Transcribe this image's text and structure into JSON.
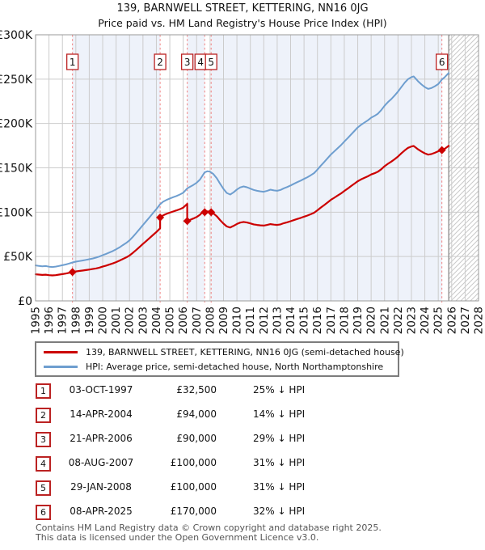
{
  "title": "139, BARNWELL STREET, KETTERING, NN16 0JG",
  "subtitle": "Price paid vs. HM Land Registry's House Price Index (HPI)",
  "chart_data": {
    "type": "line",
    "x_range": [
      1995,
      2028
    ],
    "y_range": [
      0,
      300000
    ],
    "x_ticks": [
      1995,
      1996,
      1997,
      1998,
      1999,
      2000,
      2001,
      2002,
      2003,
      2004,
      2005,
      2006,
      2007,
      2008,
      2009,
      2010,
      2011,
      2012,
      2013,
      2014,
      2015,
      2016,
      2017,
      2018,
      2019,
      2020,
      2021,
      2022,
      2023,
      2024,
      2025,
      2026,
      2027,
      2028
    ],
    "y_ticks": [
      {
        "value": 300000,
        "label": "£300K"
      },
      {
        "value": 250000,
        "label": "£250K"
      },
      {
        "value": 200000,
        "label": "£200K"
      },
      {
        "value": 150000,
        "label": "£150K"
      },
      {
        "value": 100000,
        "label": "£100K"
      },
      {
        "value": 50000,
        "label": "£50K"
      },
      {
        "value": 0,
        "label": "£0"
      }
    ],
    "grid": true,
    "legend_position": "below",
    "colors": {
      "price_line": "#cc0000",
      "hpi_line": "#6e9ecf",
      "event_line": "#f08080",
      "grid": "#cccccc",
      "border": "#999999",
      "owned_fill": "#eef2fa",
      "hatch": "#c9c9c9",
      "today_line": "#808080",
      "badge_border": "#bb2222"
    },
    "shaded_spans": [
      [
        1997.75,
        2004.28
      ],
      [
        2006.3,
        2007.6
      ],
      [
        2008.08,
        2025.27
      ]
    ],
    "hpi_end_year": 2025.78,
    "sales": [
      {
        "n": 1,
        "year": 1997.75,
        "price": 32500
      },
      {
        "n": 2,
        "year": 2004.28,
        "price": 94000
      },
      {
        "n": 3,
        "year": 2006.3,
        "price": 90000
      },
      {
        "n": 4,
        "year": 2007.6,
        "price": 100000
      },
      {
        "n": 5,
        "year": 2008.08,
        "price": 100000
      },
      {
        "n": 6,
        "year": 2025.27,
        "price": 170000
      }
    ],
    "series": [
      {
        "name": "139, BARNWELL STREET, KETTERING, NN16 0JG (semi-detached house)",
        "color": "#cc0000",
        "points": [
          [
            1995,
            30000
          ],
          [
            1995.25,
            29600
          ],
          [
            1995.5,
            29300
          ],
          [
            1995.75,
            29500
          ],
          [
            1996,
            29000
          ],
          [
            1996.25,
            28700
          ],
          [
            1996.5,
            29000
          ],
          [
            1996.75,
            29600
          ],
          [
            1997,
            30200
          ],
          [
            1997.25,
            30800
          ],
          [
            1997.5,
            31600
          ],
          [
            1997.75,
            32500
          ],
          [
            1998,
            33200
          ],
          [
            1998.25,
            33700
          ],
          [
            1998.5,
            34200
          ],
          [
            1998.75,
            34700
          ],
          [
            1999,
            35300
          ],
          [
            1999.25,
            35900
          ],
          [
            1999.5,
            36600
          ],
          [
            1999.75,
            37500
          ],
          [
            2000,
            38700
          ],
          [
            2000.25,
            39800
          ],
          [
            2000.5,
            40900
          ],
          [
            2000.75,
            42200
          ],
          [
            2001,
            43700
          ],
          [
            2001.25,
            45300
          ],
          [
            2001.5,
            47100
          ],
          [
            2001.75,
            49000
          ],
          [
            2002,
            51200
          ],
          [
            2002.25,
            54200
          ],
          [
            2002.5,
            57400
          ],
          [
            2002.75,
            60800
          ],
          [
            2003,
            64200
          ],
          [
            2003.25,
            67600
          ],
          [
            2003.5,
            70900
          ],
          [
            2003.75,
            74300
          ],
          [
            2004,
            77700
          ],
          [
            2004.28,
            81800
          ],
          [
            2004.28,
            94000
          ],
          [
            2004.5,
            96400
          ],
          [
            2004.75,
            98100
          ],
          [
            2005,
            99500
          ],
          [
            2005.25,
            100800
          ],
          [
            2005.5,
            102000
          ],
          [
            2005.75,
            103400
          ],
          [
            2006,
            105100
          ],
          [
            2006.3,
            109400
          ],
          [
            2006.3,
            90000
          ],
          [
            2006.5,
            91300
          ],
          [
            2006.75,
            92800
          ],
          [
            2007,
            94600
          ],
          [
            2007.25,
            97100
          ],
          [
            2007.6,
            102900
          ],
          [
            2007.6,
            100000
          ],
          [
            2007.8,
            100900
          ],
          [
            2008,
            100500
          ],
          [
            2008.08,
            100000
          ],
          [
            2008.25,
            98700
          ],
          [
            2008.5,
            95400
          ],
          [
            2008.75,
            91100
          ],
          [
            2009,
            87100
          ],
          [
            2009.25,
            83900
          ],
          [
            2009.5,
            82700
          ],
          [
            2009.75,
            84500
          ],
          [
            2010,
            86700
          ],
          [
            2010.25,
            88300
          ],
          [
            2010.5,
            89000
          ],
          [
            2010.75,
            88400
          ],
          [
            2011,
            87400
          ],
          [
            2011.25,
            86300
          ],
          [
            2011.5,
            85600
          ],
          [
            2011.75,
            85200
          ],
          [
            2012,
            84900
          ],
          [
            2012.25,
            85600
          ],
          [
            2012.5,
            86500
          ],
          [
            2012.75,
            86000
          ],
          [
            2013,
            85600
          ],
          [
            2013.25,
            86300
          ],
          [
            2013.5,
            87600
          ],
          [
            2013.75,
            88600
          ],
          [
            2014,
            89800
          ],
          [
            2014.25,
            91100
          ],
          [
            2014.5,
            92400
          ],
          [
            2014.75,
            93600
          ],
          [
            2015,
            94900
          ],
          [
            2015.25,
            96200
          ],
          [
            2015.5,
            97700
          ],
          [
            2015.75,
            99400
          ],
          [
            2016,
            102100
          ],
          [
            2016.25,
            105200
          ],
          [
            2016.5,
            108000
          ],
          [
            2016.75,
            110900
          ],
          [
            2017,
            113900
          ],
          [
            2017.25,
            116300
          ],
          [
            2017.5,
            118700
          ],
          [
            2017.75,
            121100
          ],
          [
            2018,
            123900
          ],
          [
            2018.25,
            126600
          ],
          [
            2018.5,
            129400
          ],
          [
            2018.75,
            132100
          ],
          [
            2019,
            134900
          ],
          [
            2019.25,
            137000
          ],
          [
            2019.5,
            138700
          ],
          [
            2019.75,
            140400
          ],
          [
            2020,
            142500
          ],
          [
            2020.25,
            143900
          ],
          [
            2020.5,
            145600
          ],
          [
            2020.75,
            148400
          ],
          [
            2021,
            151800
          ],
          [
            2021.25,
            154600
          ],
          [
            2021.5,
            157000
          ],
          [
            2021.75,
            159700
          ],
          [
            2022,
            162800
          ],
          [
            2022.25,
            166300
          ],
          [
            2022.5,
            169700
          ],
          [
            2022.75,
            172500
          ],
          [
            2023,
            174100
          ],
          [
            2023.17,
            174600
          ],
          [
            2023.33,
            172800
          ],
          [
            2023.5,
            170800
          ],
          [
            2023.75,
            168400
          ],
          [
            2024,
            166300
          ],
          [
            2024.25,
            164900
          ],
          [
            2024.5,
            165600
          ],
          [
            2024.75,
            167000
          ],
          [
            2025,
            168700
          ],
          [
            2025.27,
            170000
          ],
          [
            2025.5,
            171700
          ],
          [
            2025.78,
            174800
          ]
        ]
      },
      {
        "name": "HPI: Average price, semi-detached house, North Northamptonshire",
        "color": "#6e9ecf",
        "points": [
          [
            1995,
            40000
          ],
          [
            1995.25,
            39400
          ],
          [
            1995.5,
            39000
          ],
          [
            1995.75,
            39300
          ],
          [
            1996,
            38600
          ],
          [
            1996.25,
            38200
          ],
          [
            1996.5,
            38700
          ],
          [
            1996.75,
            39400
          ],
          [
            1997,
            40200
          ],
          [
            1997.25,
            41000
          ],
          [
            1997.5,
            42100
          ],
          [
            1997.75,
            43300
          ],
          [
            1998,
            44200
          ],
          [
            1998.25,
            44900
          ],
          [
            1998.5,
            45500
          ],
          [
            1998.75,
            46200
          ],
          [
            1999,
            47000
          ],
          [
            1999.25,
            47800
          ],
          [
            1999.5,
            48800
          ],
          [
            1999.75,
            50000
          ],
          [
            2000,
            51500
          ],
          [
            2000.25,
            53000
          ],
          [
            2000.5,
            54500
          ],
          [
            2000.75,
            56200
          ],
          [
            2001,
            58200
          ],
          [
            2001.25,
            60300
          ],
          [
            2001.5,
            62800
          ],
          [
            2001.75,
            65300
          ],
          [
            2002,
            68200
          ],
          [
            2002.25,
            72200
          ],
          [
            2002.5,
            76500
          ],
          [
            2002.75,
            81000
          ],
          [
            2003,
            85500
          ],
          [
            2003.25,
            90000
          ],
          [
            2003.5,
            94500
          ],
          [
            2003.75,
            99000
          ],
          [
            2004,
            103500
          ],
          [
            2004.28,
            109000
          ],
          [
            2004.5,
            111800
          ],
          [
            2004.75,
            113800
          ],
          [
            2005,
            115400
          ],
          [
            2005.25,
            116900
          ],
          [
            2005.5,
            118300
          ],
          [
            2005.75,
            119900
          ],
          [
            2006,
            121900
          ],
          [
            2006.3,
            126800
          ],
          [
            2006.5,
            128600
          ],
          [
            2006.75,
            130700
          ],
          [
            2007,
            133200
          ],
          [
            2007.25,
            136800
          ],
          [
            2007.6,
            144900
          ],
          [
            2007.8,
            146200
          ],
          [
            2008,
            145600
          ],
          [
            2008.25,
            143000
          ],
          [
            2008.5,
            138200
          ],
          [
            2008.75,
            132000
          ],
          [
            2009,
            126200
          ],
          [
            2009.25,
            121600
          ],
          [
            2009.5,
            119900
          ],
          [
            2009.75,
            122400
          ],
          [
            2010,
            125600
          ],
          [
            2010.25,
            127900
          ],
          [
            2010.5,
            129000
          ],
          [
            2010.75,
            128100
          ],
          [
            2011,
            126600
          ],
          [
            2011.25,
            125100
          ],
          [
            2011.5,
            124100
          ],
          [
            2011.75,
            123500
          ],
          [
            2012,
            123000
          ],
          [
            2012.25,
            124100
          ],
          [
            2012.5,
            125400
          ],
          [
            2012.75,
            124600
          ],
          [
            2013,
            124100
          ],
          [
            2013.25,
            125100
          ],
          [
            2013.5,
            126900
          ],
          [
            2013.75,
            128400
          ],
          [
            2014,
            130100
          ],
          [
            2014.25,
            132000
          ],
          [
            2014.5,
            133900
          ],
          [
            2014.75,
            135600
          ],
          [
            2015,
            137500
          ],
          [
            2015.25,
            139400
          ],
          [
            2015.5,
            141600
          ],
          [
            2015.75,
            144100
          ],
          [
            2016,
            148000
          ],
          [
            2016.25,
            152500
          ],
          [
            2016.5,
            156500
          ],
          [
            2016.75,
            160800
          ],
          [
            2017,
            165000
          ],
          [
            2017.25,
            168500
          ],
          [
            2017.5,
            172000
          ],
          [
            2017.75,
            175500
          ],
          [
            2018,
            179500
          ],
          [
            2018.25,
            183500
          ],
          [
            2018.5,
            187500
          ],
          [
            2018.75,
            191500
          ],
          [
            2019,
            195500
          ],
          [
            2019.25,
            198500
          ],
          [
            2019.5,
            201000
          ],
          [
            2019.75,
            203500
          ],
          [
            2020,
            206500
          ],
          [
            2020.25,
            208500
          ],
          [
            2020.5,
            211000
          ],
          [
            2020.75,
            215000
          ],
          [
            2021,
            220000
          ],
          [
            2021.25,
            224000
          ],
          [
            2021.5,
            227500
          ],
          [
            2021.75,
            231500
          ],
          [
            2022,
            236000
          ],
          [
            2022.25,
            241000
          ],
          [
            2022.5,
            246000
          ],
          [
            2022.75,
            250000
          ],
          [
            2023,
            252300
          ],
          [
            2023.17,
            253000
          ],
          [
            2023.33,
            250500
          ],
          [
            2023.5,
            247500
          ],
          [
            2023.75,
            244000
          ],
          [
            2024,
            241000
          ],
          [
            2024.25,
            239000
          ],
          [
            2024.5,
            240000
          ],
          [
            2024.75,
            242000
          ],
          [
            2025,
            244500
          ],
          [
            2025.27,
            249500
          ],
          [
            2025.5,
            252500
          ],
          [
            2025.78,
            257000
          ]
        ]
      }
    ]
  },
  "legend": {
    "items": [
      {
        "label": "139, BARNWELL STREET, KETTERING, NN16 0JG (semi-detached house)",
        "color": "#cc0000"
      },
      {
        "label": "HPI: Average price, semi-detached house, North Northamptonshire",
        "color": "#6e9ecf"
      }
    ]
  },
  "table": {
    "rows": [
      {
        "n": "1",
        "date": "03-OCT-1997",
        "price": "£32,500",
        "vs_hpi": "25% ↓ HPI"
      },
      {
        "n": "2",
        "date": "14-APR-2004",
        "price": "£94,000",
        "vs_hpi": "14% ↓ HPI"
      },
      {
        "n": "3",
        "date": "21-APR-2006",
        "price": "£90,000",
        "vs_hpi": "29% ↓ HPI"
      },
      {
        "n": "4",
        "date": "08-AUG-2007",
        "price": "£100,000",
        "vs_hpi": "31% ↓ HPI"
      },
      {
        "n": "5",
        "date": "29-JAN-2008",
        "price": "£100,000",
        "vs_hpi": "31% ↓ HPI"
      },
      {
        "n": "6",
        "date": "08-APR-2025",
        "price": "£170,000",
        "vs_hpi": "32% ↓ HPI"
      }
    ]
  },
  "footer": {
    "line1": "Contains HM Land Registry data © Crown copyright and database right 2025.",
    "line2": "This data is licensed under the Open Government Licence v3.0."
  }
}
